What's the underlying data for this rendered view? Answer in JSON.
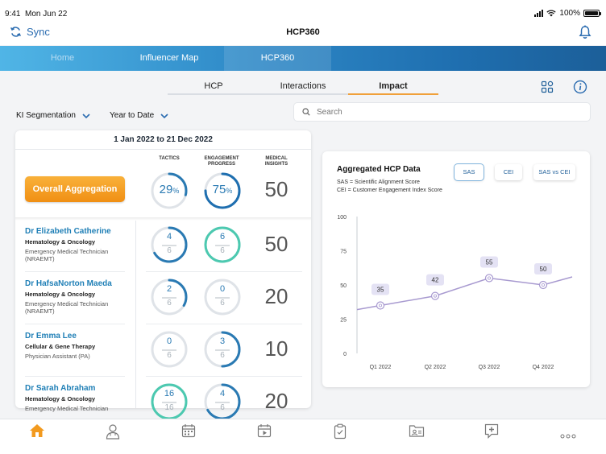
{
  "status": {
    "time": "9:41",
    "date": "Mon Jun 22",
    "battery": "100%"
  },
  "header": {
    "sync_label": "Sync",
    "title": "HCP360"
  },
  "nav": {
    "items": [
      "Home",
      "Influencer Map",
      "HCP360"
    ],
    "active": 2
  },
  "subtabs": {
    "items": [
      "HCP",
      "Interactions",
      "Impact"
    ],
    "active": 2
  },
  "filters": {
    "segmentation": "KI Segmentation",
    "period": "Year to Date"
  },
  "search": {
    "placeholder": "Search"
  },
  "summary": {
    "date_range": "1 Jan 2022 to 21 Dec 2022",
    "col_tactics": "TACTICS",
    "col_engagement": "ENGAGEMENT PROGRESS",
    "col_insights": "MEDICAL INSIGHTS",
    "aggregation_label": "Overall Aggregation",
    "aggregation": {
      "tactics": "29",
      "tactics_unit": "%",
      "tactics_progress": 0.29,
      "engagement": "75",
      "engagement_unit": "%",
      "engagement_progress": 0.75,
      "insights": "50"
    }
  },
  "hcps": [
    {
      "name": "Dr Elizabeth Catherine",
      "specialty": "Hematology & Oncology",
      "role": "Emergency Medical Technician (NRAEMT)",
      "tactics": "4",
      "tactics_total": "6",
      "engagement": "6",
      "engagement_total": "6",
      "insights": "50"
    },
    {
      "name": "Dr HafsaNorton Maeda",
      "specialty": "Hematology & Oncology",
      "role": "Emergency Medical Technician (NRAEMT)",
      "tactics": "2",
      "tactics_total": "6",
      "engagement": "0",
      "engagement_total": "6",
      "insights": "20"
    },
    {
      "name": "Dr Emma Lee",
      "specialty": "Cellular & Gene Therapy",
      "role": "Physician Assistant (PA)",
      "tactics": "0",
      "tactics_total": "6",
      "engagement": "3",
      "engagement_total": "6",
      "insights": "10"
    },
    {
      "name": "Dr Sarah Abraham",
      "specialty": "Hematology & Oncology",
      "role": "Emergency Medical Technician",
      "tactics": "16",
      "tactics_total": "16",
      "engagement": "4",
      "engagement_total": "6",
      "insights": "20"
    }
  ],
  "chart_panel": {
    "title": "Aggregated HCP Data",
    "legend_sas": "SAS = Scientific Alignment Score",
    "legend_cei": "CEI = Customer Engagement Index Score",
    "toggles": [
      "SAS",
      "CEI",
      "SAS vs CEI"
    ],
    "active_toggle": 0
  },
  "chart_data": {
    "type": "line",
    "title": "",
    "categories": [
      "Q1 2022",
      "Q2 2022",
      "Q3 2022",
      "Q4 2022"
    ],
    "values": [
      35,
      42,
      55,
      50
    ],
    "ylim": [
      0,
      100
    ],
    "yticks": [
      "0",
      "25",
      "50",
      "75",
      "100"
    ],
    "grid": false,
    "line_color": "#a89ad0"
  },
  "colors": {
    "accent_blue": "#2a7ab3",
    "teal": "#4cc9b0",
    "orange": "#f29a1f"
  },
  "tabbar": {
    "icons": [
      "home-icon",
      "doctor-icon",
      "calendar-icon",
      "video-calendar-icon",
      "clipboard-icon",
      "id-card-folder-icon",
      "medical-chat-icon",
      "more-icon"
    ],
    "active": 0
  }
}
